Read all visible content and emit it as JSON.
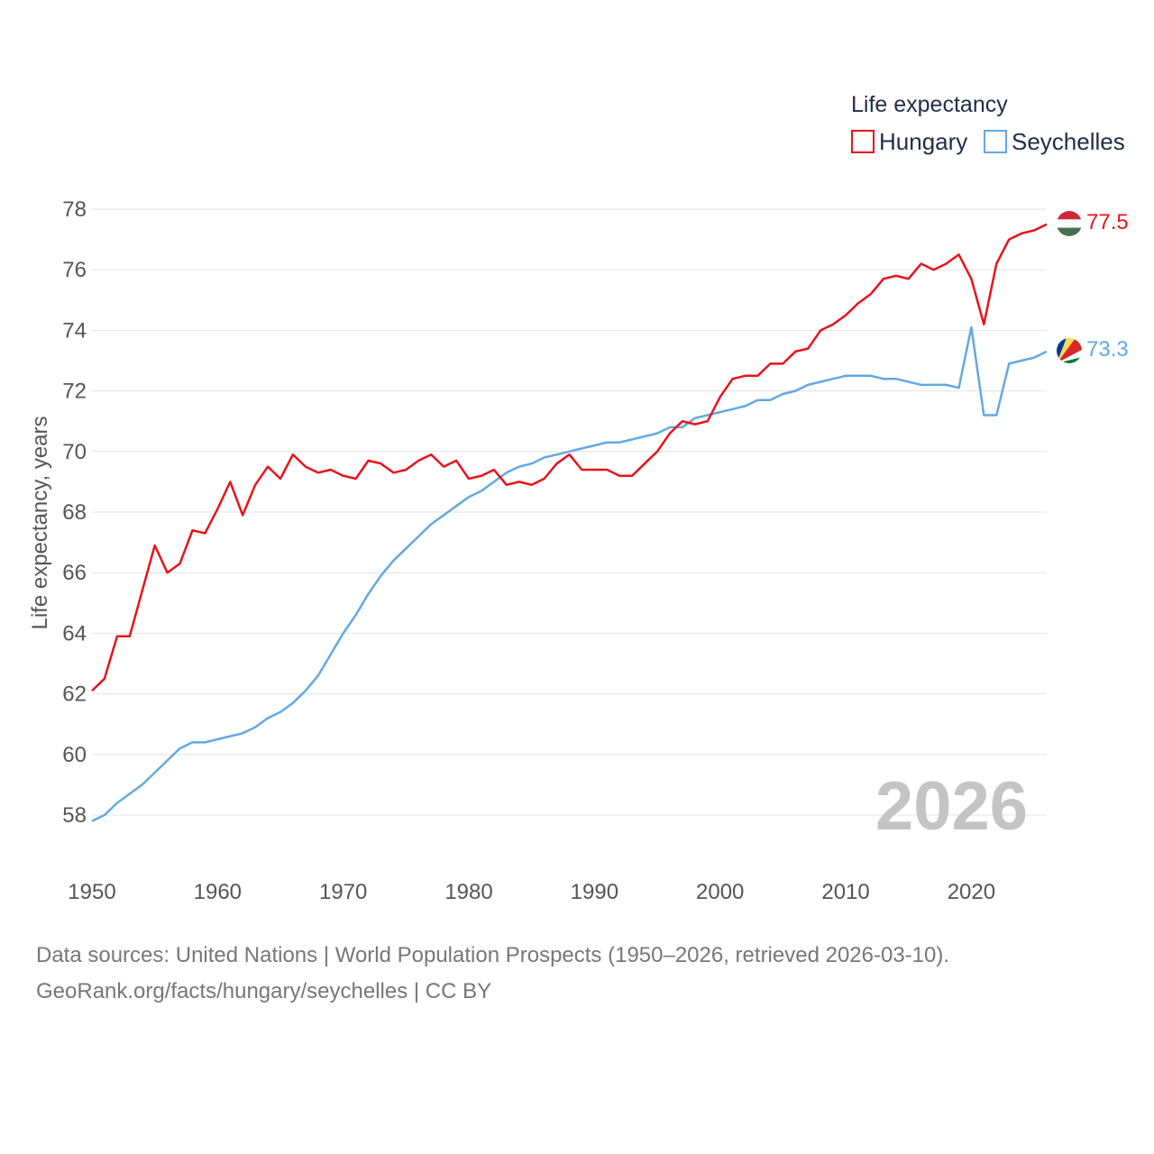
{
  "chart_data": {
    "type": "line",
    "ylabel": "Life expectancy, years",
    "ylim": [
      57,
      78.5
    ],
    "xlim": [
      1950,
      2026
    ],
    "y_ticks": [
      58,
      60,
      62,
      64,
      66,
      68,
      70,
      72,
      74,
      76,
      78
    ],
    "x_ticks": [
      1950,
      1960,
      1970,
      1980,
      1990,
      2000,
      2010,
      2020
    ],
    "grid": true,
    "legend": {
      "title": "Life expectancy",
      "position": "top-right"
    },
    "year_label": "2026",
    "x": [
      1950,
      1951,
      1952,
      1953,
      1954,
      1955,
      1956,
      1957,
      1958,
      1959,
      1960,
      1961,
      1962,
      1963,
      1964,
      1965,
      1966,
      1967,
      1968,
      1969,
      1970,
      1971,
      1972,
      1973,
      1974,
      1975,
      1976,
      1977,
      1978,
      1979,
      1980,
      1981,
      1982,
      1983,
      1984,
      1985,
      1986,
      1987,
      1988,
      1989,
      1990,
      1991,
      1992,
      1993,
      1994,
      1995,
      1996,
      1997,
      1998,
      1999,
      2000,
      2001,
      2002,
      2003,
      2004,
      2005,
      2006,
      2007,
      2008,
      2009,
      2010,
      2011,
      2012,
      2013,
      2014,
      2015,
      2016,
      2017,
      2018,
      2019,
      2020,
      2021,
      2022,
      2023,
      2024,
      2025,
      2026
    ],
    "series": [
      {
        "name": "Hungary",
        "color": "#e8131a",
        "end_label": "77.5",
        "flag": "hungary-flag",
        "values": [
          62.1,
          62.5,
          63.9,
          63.9,
          65.4,
          66.9,
          66.0,
          66.3,
          67.4,
          67.3,
          68.1,
          69.0,
          67.9,
          68.9,
          69.5,
          69.1,
          69.9,
          69.5,
          69.3,
          69.4,
          69.2,
          69.1,
          69.7,
          69.6,
          69.3,
          69.4,
          69.7,
          69.9,
          69.5,
          69.7,
          69.1,
          69.2,
          69.4,
          68.9,
          69.0,
          68.9,
          69.1,
          69.6,
          69.9,
          69.4,
          69.4,
          69.4,
          69.2,
          69.2,
          69.6,
          70.0,
          70.6,
          71.0,
          70.9,
          71.0,
          71.8,
          72.4,
          72.5,
          72.5,
          72.9,
          72.9,
          73.3,
          73.4,
          74.0,
          74.2,
          74.5,
          74.9,
          75.2,
          75.7,
          75.8,
          75.7,
          76.2,
          76.0,
          76.2,
          76.5,
          75.7,
          74.2,
          76.2,
          77.0,
          77.2,
          77.3,
          77.5
        ]
      },
      {
        "name": "Seychelles",
        "color": "#62a8e5",
        "end_label": "73.3",
        "flag": "seychelles-flag",
        "values": [
          57.8,
          58.0,
          58.4,
          58.7,
          59.0,
          59.4,
          59.8,
          60.2,
          60.4,
          60.4,
          60.5,
          60.6,
          60.7,
          60.9,
          61.2,
          61.4,
          61.7,
          62.1,
          62.6,
          63.3,
          64.0,
          64.6,
          65.3,
          65.9,
          66.4,
          66.8,
          67.2,
          67.6,
          67.9,
          68.2,
          68.5,
          68.7,
          69.0,
          69.3,
          69.5,
          69.6,
          69.8,
          69.9,
          70.0,
          70.1,
          70.2,
          70.3,
          70.3,
          70.4,
          70.5,
          70.6,
          70.8,
          70.8,
          71.1,
          71.2,
          71.3,
          71.4,
          71.5,
          71.7,
          71.7,
          71.9,
          72.0,
          72.2,
          72.3,
          72.4,
          72.5,
          72.5,
          72.5,
          72.4,
          72.4,
          72.3,
          72.2,
          72.2,
          72.2,
          72.1,
          74.1,
          71.2,
          71.2,
          72.9,
          73.0,
          73.1,
          73.3
        ]
      }
    ]
  },
  "footer": {
    "sources": "Data sources: United Nations | World Population Prospects (1950–2026, retrieved 2026-03-10).",
    "credit": "GeoRank.org/facts/hungary/seychelles | CC BY"
  }
}
